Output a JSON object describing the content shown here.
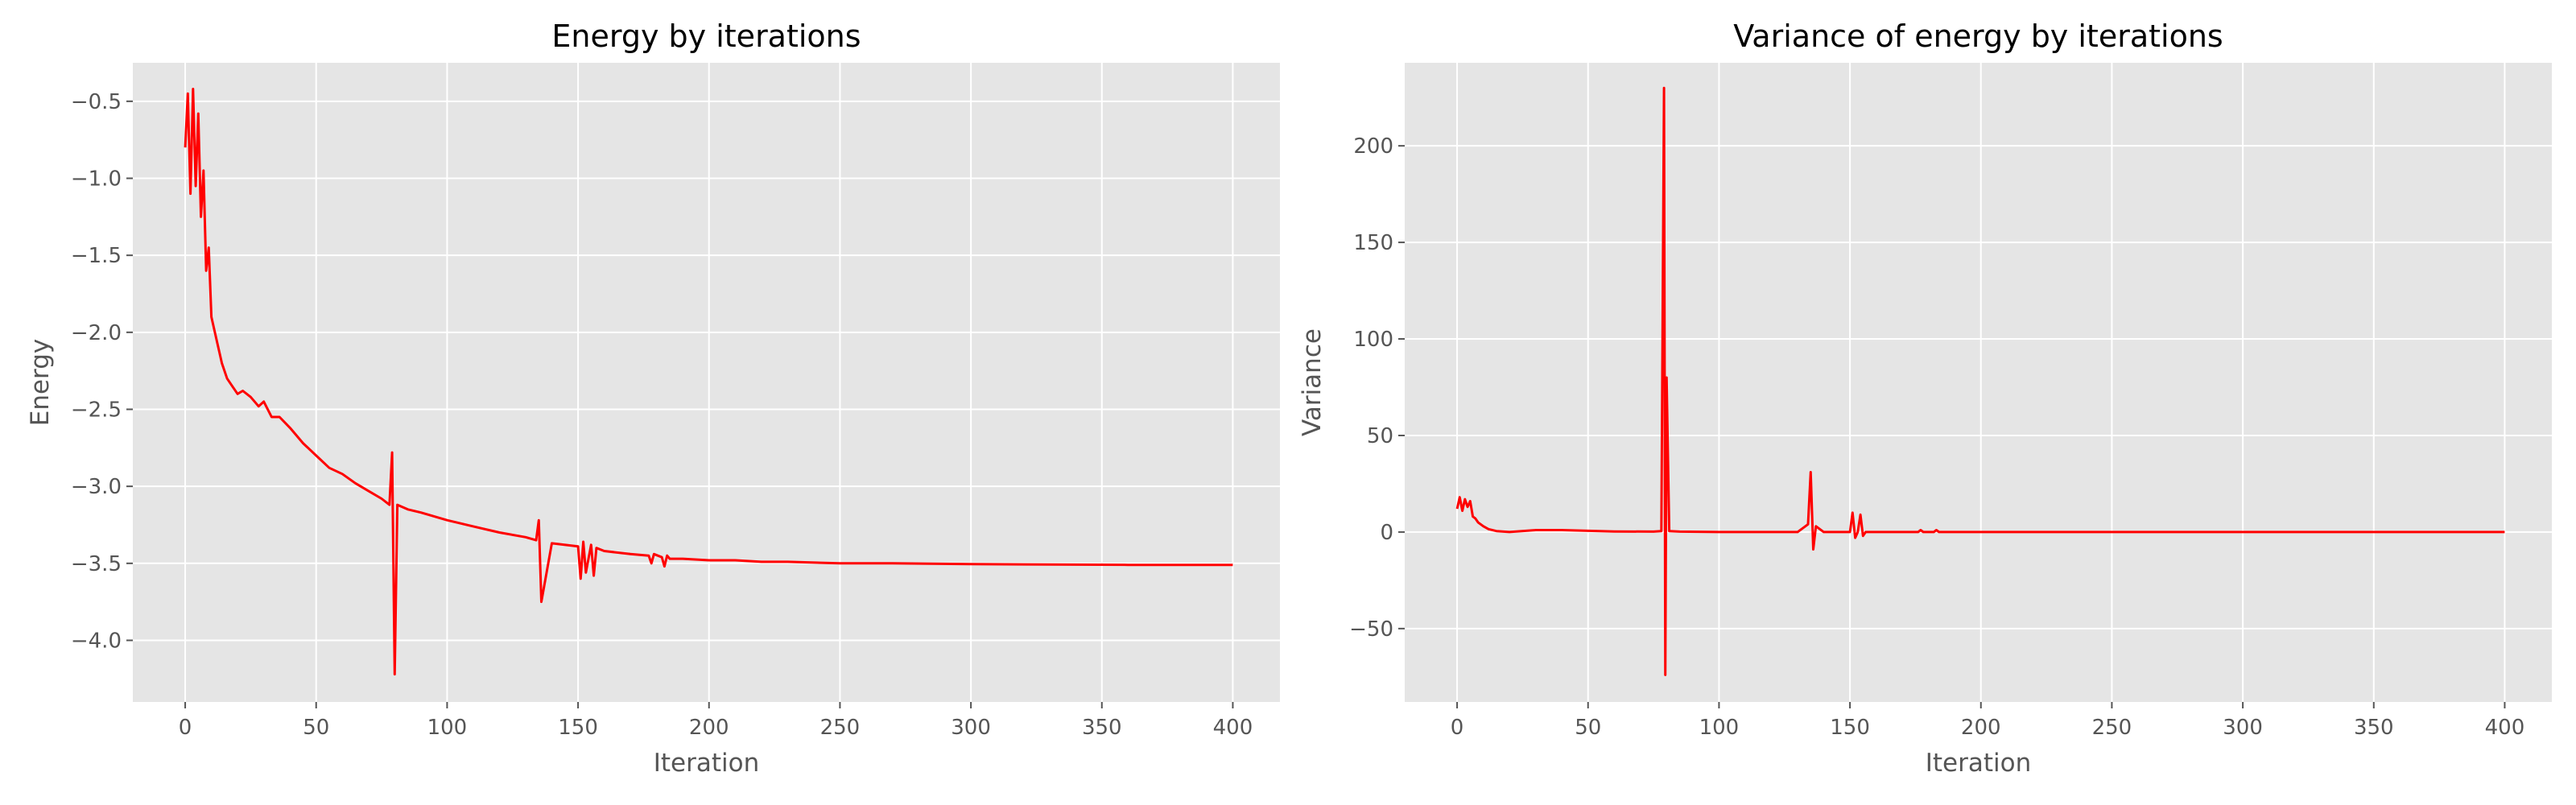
{
  "chart_data": [
    {
      "type": "line",
      "title": "Energy by iterations",
      "xlabel": "Iteration",
      "ylabel": "Energy",
      "xlim": [
        -20,
        418
      ],
      "ylim": [
        -4.4,
        -0.25
      ],
      "xticks": [
        0,
        50,
        100,
        150,
        200,
        250,
        300,
        350,
        400
      ],
      "yticks": [
        -4.0,
        -3.5,
        -3.0,
        -2.5,
        -2.0,
        -1.5,
        -1.0,
        -0.5
      ],
      "ytick_labels": [
        "−4.0",
        "−3.5",
        "−3.0",
        "−2.5",
        "−2.0",
        "−1.5",
        "−1.0",
        "−0.5"
      ],
      "grid": true,
      "series": [
        {
          "color": "#ff0000",
          "x": [
            0,
            1,
            2,
            3,
            4,
            5,
            6,
            7,
            8,
            9,
            10,
            12,
            14,
            16,
            18,
            20,
            22,
            25,
            28,
            30,
            33,
            36,
            40,
            45,
            50,
            55,
            60,
            65,
            70,
            75,
            78,
            79,
            80,
            81,
            85,
            90,
            100,
            110,
            120,
            130,
            134,
            135,
            136,
            140,
            150,
            151,
            152,
            153,
            155,
            156,
            157,
            160,
            170,
            177,
            178,
            179,
            182,
            183,
            184,
            185,
            190,
            200,
            210,
            220,
            230,
            250,
            270,
            300,
            330,
            360,
            400
          ],
          "y": [
            -0.8,
            -0.45,
            -1.1,
            -0.42,
            -1.05,
            -0.58,
            -1.25,
            -0.95,
            -1.6,
            -1.45,
            -1.9,
            -2.05,
            -2.2,
            -2.3,
            -2.35,
            -2.4,
            -2.38,
            -2.42,
            -2.48,
            -2.45,
            -2.55,
            -2.55,
            -2.62,
            -2.72,
            -2.8,
            -2.88,
            -2.92,
            -2.98,
            -3.03,
            -3.08,
            -3.12,
            -2.78,
            -4.22,
            -3.12,
            -3.15,
            -3.17,
            -3.22,
            -3.26,
            -3.3,
            -3.33,
            -3.35,
            -3.22,
            -3.75,
            -3.37,
            -3.39,
            -3.6,
            -3.36,
            -3.56,
            -3.38,
            -3.58,
            -3.4,
            -3.42,
            -3.44,
            -3.45,
            -3.5,
            -3.44,
            -3.46,
            -3.52,
            -3.45,
            -3.47,
            -3.47,
            -3.48,
            -3.48,
            -3.49,
            -3.49,
            -3.5,
            -3.5,
            -3.505,
            -3.508,
            -3.51,
            -3.51
          ]
        }
      ]
    },
    {
      "type": "line",
      "title": "Variance of energy by iterations",
      "xlabel": "Iteration",
      "ylabel": "Variance",
      "xlim": [
        -20,
        418
      ],
      "ylim": [
        -88,
        243
      ],
      "xticks": [
        0,
        50,
        100,
        150,
        200,
        250,
        300,
        350,
        400
      ],
      "yticks": [
        -50,
        0,
        50,
        100,
        150,
        200
      ],
      "ytick_labels": [
        "−50",
        "0",
        "50",
        "100",
        "150",
        "200"
      ],
      "grid": true,
      "series": [
        {
          "color": "#ff0000",
          "x": [
            0,
            1,
            2,
            3,
            4,
            5,
            6,
            7,
            8,
            10,
            12,
            15,
            20,
            30,
            40,
            60,
            75,
            78,
            79,
            79.5,
            80,
            81,
            85,
            100,
            130,
            134,
            135,
            136,
            137,
            140,
            150,
            151,
            152,
            153,
            154,
            155,
            156,
            160,
            176,
            177,
            178,
            182,
            183,
            184,
            186,
            200,
            250,
            300,
            350,
            400
          ],
          "y": [
            12,
            18,
            11,
            17,
            13,
            16,
            8,
            7,
            5,
            3,
            1.5,
            0.5,
            0,
            1,
            1,
            0.3,
            0.2,
            0.5,
            230,
            -74,
            80,
            0.5,
            0.2,
            0,
            0,
            4,
            31,
            -9,
            3,
            0,
            0,
            10,
            -3,
            0,
            9,
            -2,
            0,
            0,
            0,
            1,
            0,
            0,
            1,
            0,
            0,
            0,
            0,
            0,
            0,
            0
          ]
        }
      ]
    }
  ]
}
